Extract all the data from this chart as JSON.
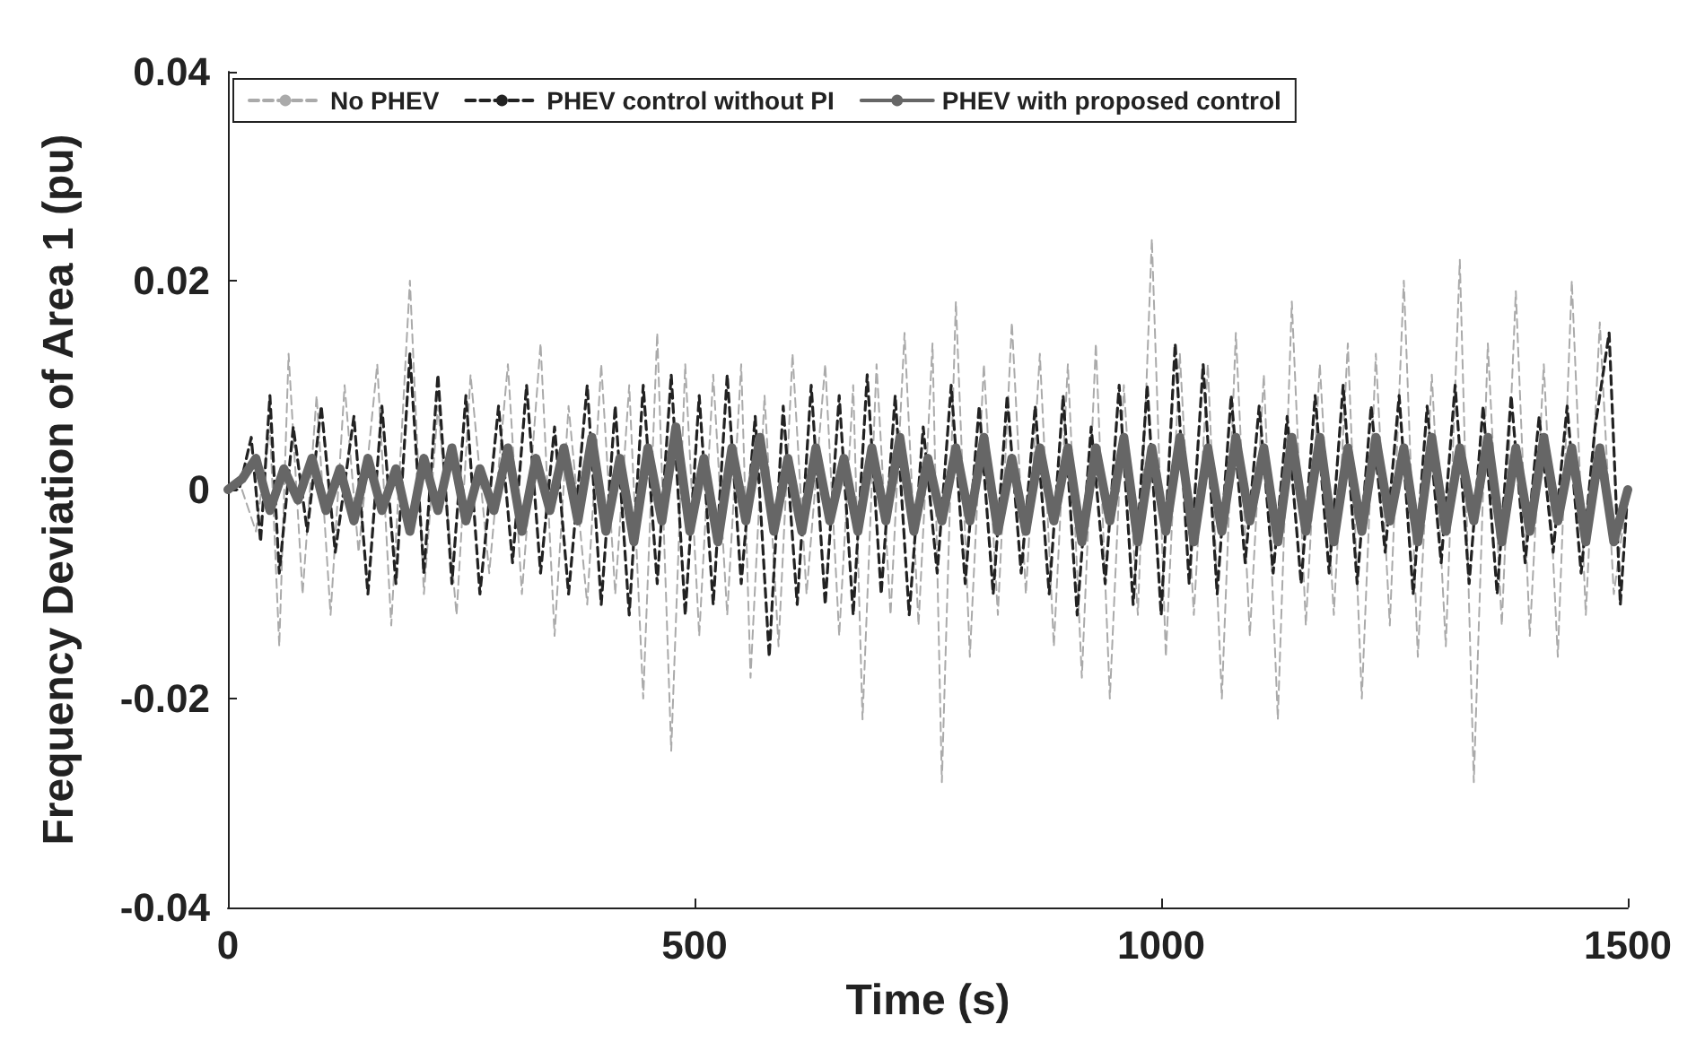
{
  "chart_data": {
    "type": "line",
    "xlabel": "Time (s)",
    "ylabel": "Frequency Deviation of Area 1 (pu)",
    "xlim": [
      0,
      1500
    ],
    "xticks": [
      0,
      500,
      1000,
      1500
    ],
    "ylim": [
      -0.04,
      0.04
    ],
    "yticks": [
      -0.04,
      -0.02,
      0,
      0.02,
      0.04
    ],
    "grid": false,
    "legend": "top",
    "marker": "none",
    "series": [
      {
        "name": "No PHEV",
        "color": "#aaaaaa",
        "line_style": "dashed",
        "x": [
          0,
          15,
          30,
          45,
          55,
          65,
          80,
          95,
          110,
          125,
          140,
          160,
          175,
          195,
          210,
          225,
          245,
          260,
          280,
          300,
          315,
          335,
          350,
          365,
          385,
          400,
          415,
          430,
          445,
          460,
          475,
          490,
          505,
          520,
          535,
          550,
          560,
          575,
          590,
          605,
          620,
          640,
          655,
          670,
          680,
          695,
          710,
          725,
          740,
          755,
          765,
          780,
          795,
          810,
          825,
          840,
          855,
          870,
          885,
          900,
          915,
          930,
          945,
          960,
          975,
          990,
          1005,
          1020,
          1035,
          1050,
          1065,
          1080,
          1095,
          1110,
          1125,
          1140,
          1155,
          1170,
          1185,
          1200,
          1215,
          1230,
          1245,
          1260,
          1275,
          1290,
          1305,
          1320,
          1335,
          1350,
          1365,
          1380,
          1395,
          1410,
          1425,
          1440,
          1455,
          1470,
          1485,
          1500
        ],
        "values": [
          0,
          0,
          -0.004,
          0.006,
          -0.015,
          0.013,
          -0.01,
          0.009,
          -0.012,
          0.01,
          -0.006,
          0.012,
          -0.013,
          0.02,
          -0.01,
          0.008,
          -0.012,
          0.011,
          -0.008,
          0.012,
          -0.01,
          0.014,
          -0.014,
          0.008,
          -0.011,
          0.012,
          -0.01,
          0.01,
          -0.02,
          0.015,
          -0.025,
          0.012,
          -0.014,
          0.011,
          -0.012,
          0.012,
          -0.018,
          0.009,
          -0.015,
          0.013,
          -0.01,
          0.012,
          -0.014,
          0.01,
          -0.022,
          0.012,
          -0.012,
          0.015,
          -0.013,
          0.014,
          -0.028,
          0.018,
          -0.016,
          0.012,
          -0.012,
          0.016,
          -0.01,
          0.013,
          -0.015,
          0.012,
          -0.018,
          0.014,
          -0.02,
          0.01,
          -0.012,
          0.024,
          -0.016,
          0.013,
          -0.012,
          0.012,
          -0.02,
          0.015,
          -0.014,
          0.011,
          -0.022,
          0.018,
          -0.013,
          0.012,
          -0.012,
          0.014,
          -0.02,
          0.013,
          -0.013,
          0.02,
          -0.016,
          0.011,
          -0.015,
          0.022,
          -0.028,
          0.014,
          -0.013,
          0.019,
          -0.014,
          0.012,
          -0.016,
          0.02,
          -0.012,
          0.016,
          -0.01,
          0
        ]
      },
      {
        "name": "PHEV control without PI",
        "color": "#222222",
        "line_style": "dashed",
        "x": [
          0,
          12,
          25,
          35,
          45,
          55,
          70,
          85,
          100,
          115,
          135,
          150,
          165,
          180,
          195,
          210,
          225,
          240,
          255,
          270,
          290,
          305,
          320,
          335,
          350,
          365,
          385,
          400,
          415,
          430,
          445,
          460,
          475,
          490,
          505,
          520,
          535,
          550,
          565,
          580,
          595,
          610,
          625,
          640,
          655,
          670,
          685,
          700,
          715,
          730,
          745,
          760,
          775,
          790,
          805,
          820,
          835,
          850,
          865,
          880,
          895,
          910,
          925,
          940,
          955,
          970,
          985,
          1000,
          1015,
          1030,
          1045,
          1060,
          1075,
          1090,
          1105,
          1120,
          1135,
          1150,
          1165,
          1180,
          1195,
          1210,
          1225,
          1240,
          1255,
          1270,
          1285,
          1300,
          1315,
          1330,
          1345,
          1360,
          1375,
          1390,
          1405,
          1420,
          1435,
          1450,
          1465,
          1480,
          1492,
          1500
        ],
        "values": [
          0,
          0,
          0.005,
          -0.005,
          0.009,
          -0.008,
          0.006,
          -0.004,
          0.008,
          -0.006,
          0.007,
          -0.01,
          0.008,
          -0.009,
          0.013,
          -0.008,
          0.011,
          -0.009,
          0.009,
          -0.01,
          0.008,
          -0.007,
          0.01,
          -0.008,
          0.006,
          -0.01,
          0.01,
          -0.011,
          0.008,
          -0.012,
          0.01,
          -0.009,
          0.011,
          -0.012,
          0.009,
          -0.011,
          0.011,
          -0.009,
          0.007,
          -0.016,
          0.008,
          -0.011,
          0.01,
          -0.011,
          0.009,
          -0.012,
          0.011,
          -0.01,
          0.009,
          -0.012,
          0.006,
          -0.008,
          0.01,
          -0.009,
          0.008,
          -0.01,
          0.009,
          -0.008,
          0.008,
          -0.01,
          0.009,
          -0.012,
          0.006,
          -0.009,
          0.01,
          -0.011,
          0.01,
          -0.012,
          0.014,
          -0.009,
          0.012,
          -0.01,
          0.009,
          -0.007,
          0.008,
          -0.008,
          0.007,
          -0.009,
          0.009,
          -0.008,
          0.01,
          -0.009,
          0.008,
          -0.006,
          0.009,
          -0.01,
          0.008,
          -0.007,
          0.01,
          -0.009,
          0.008,
          -0.01,
          0.009,
          -0.007,
          0.007,
          -0.006,
          0.008,
          -0.008,
          0.006,
          0.015,
          -0.011,
          0
        ]
      },
      {
        "name": "PHEV with proposed control",
        "color": "#666666",
        "line_style": "solid",
        "x": [
          0,
          15,
          30,
          45,
          60,
          75,
          90,
          105,
          120,
          135,
          150,
          165,
          180,
          195,
          210,
          225,
          240,
          255,
          270,
          285,
          300,
          315,
          330,
          345,
          360,
          375,
          390,
          405,
          420,
          435,
          450,
          465,
          480,
          495,
          510,
          525,
          540,
          555,
          570,
          585,
          600,
          615,
          630,
          645,
          660,
          675,
          690,
          705,
          720,
          735,
          750,
          765,
          780,
          795,
          810,
          825,
          840,
          855,
          870,
          885,
          900,
          915,
          930,
          945,
          960,
          975,
          990,
          1005,
          1020,
          1035,
          1050,
          1065,
          1080,
          1095,
          1110,
          1125,
          1140,
          1155,
          1170,
          1185,
          1200,
          1215,
          1230,
          1245,
          1260,
          1275,
          1290,
          1305,
          1320,
          1335,
          1350,
          1365,
          1380,
          1395,
          1410,
          1425,
          1440,
          1455,
          1470,
          1485,
          1500
        ],
        "values": [
          0,
          0.001,
          0.003,
          -0.002,
          0.002,
          -0.001,
          0.003,
          -0.002,
          0.002,
          -0.003,
          0.003,
          -0.002,
          0.002,
          -0.004,
          0.003,
          -0.002,
          0.004,
          -0.003,
          0.002,
          -0.002,
          0.004,
          -0.004,
          0.003,
          -0.002,
          0.004,
          -0.003,
          0.005,
          -0.004,
          0.003,
          -0.005,
          0.004,
          -0.003,
          0.006,
          -0.004,
          0.003,
          -0.005,
          0.004,
          -0.003,
          0.005,
          -0.004,
          0.003,
          -0.004,
          0.004,
          -0.003,
          0.003,
          -0.004,
          0.004,
          -0.003,
          0.005,
          -0.004,
          0.003,
          -0.003,
          0.004,
          -0.003,
          0.005,
          -0.004,
          0.003,
          -0.004,
          0.004,
          -0.003,
          0.004,
          -0.005,
          0.004,
          -0.003,
          0.005,
          -0.005,
          0.004,
          -0.004,
          0.005,
          -0.005,
          0.004,
          -0.004,
          0.005,
          -0.003,
          0.004,
          -0.005,
          0.005,
          -0.004,
          0.005,
          -0.005,
          0.004,
          -0.004,
          0.005,
          -0.003,
          0.004,
          -0.005,
          0.005,
          -0.004,
          0.004,
          -0.003,
          0.005,
          -0.005,
          0.004,
          -0.004,
          0.005,
          -0.003,
          0.004,
          -0.005,
          0.004,
          -0.005,
          0
        ]
      }
    ]
  }
}
